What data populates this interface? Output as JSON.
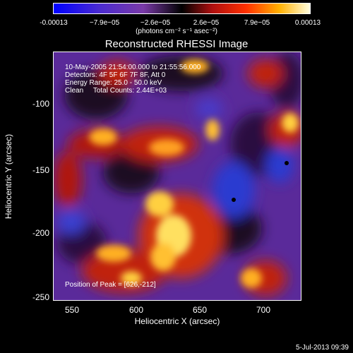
{
  "colorbar": {
    "ticks": [
      "-0.00013",
      "−7.9e−05",
      "−2.6e−05",
      "2.6e−05",
      "7.9e−05",
      "0.00013"
    ],
    "units": "(photons cm⁻² s⁻¹ asec⁻²)"
  },
  "title": "Reconstructed RHESSI Image",
  "overlay": {
    "line1": "10-May-2005 21:54:00.000 to 21:55:56.000",
    "line2": "Detectors: 4F 5F 6F 7F 8F, Att 0",
    "line3": "Energy Range: 25.0 - 50.0 keV",
    "line4": "Clean     Total Counts: 2.44E+03",
    "peak": "Position of Peak = [626,-212]"
  },
  "axes": {
    "xlabel": "Heliocentric X (arcsec)",
    "ylabel": "Heliocentric Y (arcsec)",
    "xticks": [
      "550",
      "600",
      "650",
      "700"
    ],
    "yticks": [
      "-100",
      "-150",
      "-200",
      "-250"
    ]
  },
  "footer": {
    "date": "5-Jul-2013 09:39"
  }
}
